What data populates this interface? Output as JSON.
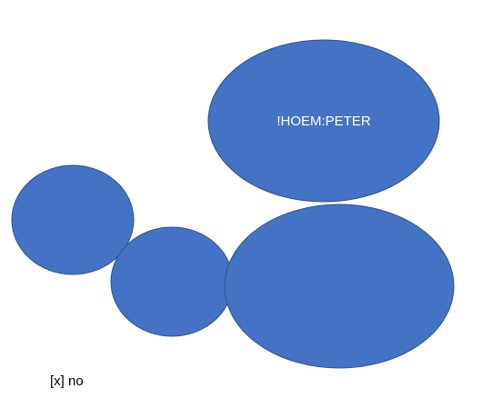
{
  "shapes": {
    "top_ellipse": {
      "label": "!HOEM:PETER"
    }
  },
  "footer": {
    "caption": "[x] no"
  },
  "colors": {
    "shape_fill": "#4472C4",
    "shape_outline": "#2F528F",
    "label_text": "#FFFFFF",
    "background": "#FFFFFF"
  }
}
